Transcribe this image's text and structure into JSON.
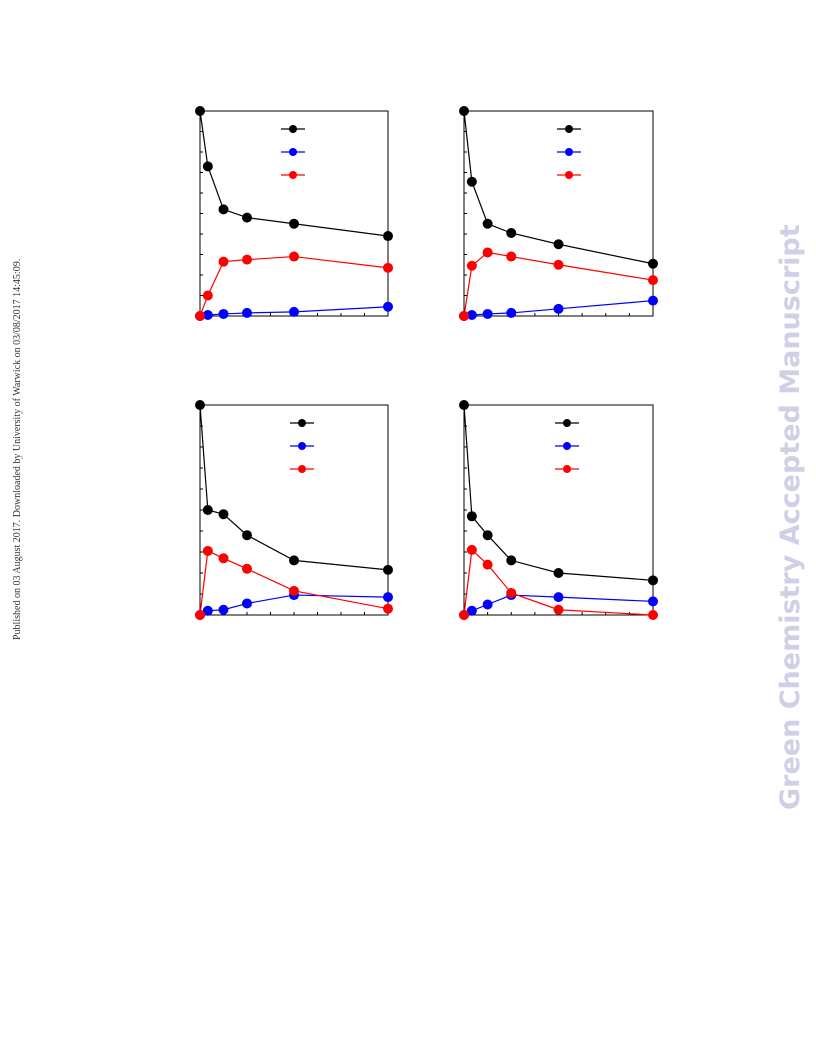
{
  "page": {
    "side_note": "Published on 03 August 2017. Downloaded by University of Warwick on 03/08/2017 14:45:09.",
    "watermark": "Green Chemistry Accepted Manuscript"
  },
  "colors": {
    "series_a": "#000000",
    "series_b": "#0000ff",
    "series_c": "#ff0000"
  },
  "chart_data": [
    {
      "type": "line",
      "position": "top-left",
      "x": [
        0,
        0.5,
        1.5,
        3,
        6,
        12
      ],
      "xlim": [
        0,
        12
      ],
      "ylim": [
        0,
        100
      ],
      "grid": false,
      "legend": "top-center",
      "series": [
        {
          "color": "#000000",
          "values": [
            100,
            73,
            52,
            48,
            45,
            39
          ]
        },
        {
          "color": "#0000ff",
          "values": [
            0,
            0.5,
            1,
            1.5,
            2,
            4.5
          ]
        },
        {
          "color": "#ff0000",
          "values": [
            0,
            10,
            26.5,
            27.5,
            29,
            23.5
          ]
        }
      ]
    },
    {
      "type": "line",
      "position": "top-right",
      "x": [
        0,
        0.5,
        1.5,
        3,
        6,
        12
      ],
      "xlim": [
        0,
        12
      ],
      "ylim": [
        0,
        100
      ],
      "grid": false,
      "legend": "top-center",
      "series": [
        {
          "color": "#000000",
          "values": [
            100,
            65.5,
            45,
            40.5,
            35,
            25.5
          ]
        },
        {
          "color": "#0000ff",
          "values": [
            0,
            0.5,
            1,
            1.5,
            3.5,
            7.5
          ]
        },
        {
          "color": "#ff0000",
          "values": [
            0,
            24.5,
            31,
            29,
            25,
            17.5
          ]
        }
      ]
    },
    {
      "type": "line",
      "position": "bottom-left",
      "x": [
        0,
        0.5,
        1.5,
        3,
        6,
        12
      ],
      "xlim": [
        0,
        12
      ],
      "ylim": [
        0,
        100
      ],
      "grid": false,
      "legend": "top-center",
      "series": [
        {
          "color": "#000000",
          "values": [
            100,
            50,
            48,
            38,
            26,
            21.5
          ]
        },
        {
          "color": "#0000ff",
          "values": [
            0,
            2,
            2.5,
            5.5,
            9.5,
            8.5
          ]
        },
        {
          "color": "#ff0000",
          "values": [
            0,
            30.5,
            27,
            22,
            11.5,
            3
          ]
        }
      ]
    },
    {
      "type": "line",
      "position": "bottom-right",
      "x": [
        0,
        0.5,
        1.5,
        3,
        6,
        12
      ],
      "xlim": [
        0,
        12
      ],
      "ylim": [
        0,
        100
      ],
      "grid": false,
      "legend": "top-center",
      "series": [
        {
          "color": "#000000",
          "values": [
            100,
            47,
            38,
            26,
            20,
            16.5
          ]
        },
        {
          "color": "#0000ff",
          "values": [
            0,
            2,
            5,
            9.5,
            8.5,
            6.5
          ]
        },
        {
          "color": "#ff0000",
          "values": [
            0,
            31,
            24,
            10.5,
            2.5,
            0
          ]
        }
      ]
    }
  ]
}
